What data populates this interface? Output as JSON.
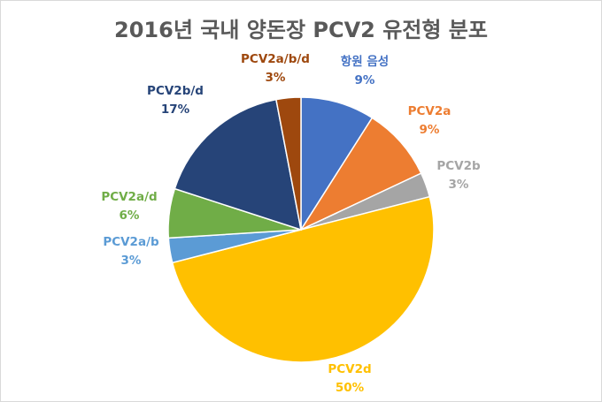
{
  "chart_data": {
    "type": "pie",
    "title": "2016년 국내 양돈장 PCV2 유전형 분포",
    "categories": [
      "항원 음성",
      "PCV2a",
      "PCV2b",
      "PCV2d",
      "PCV2a/b",
      "PCV2a/d",
      "PCV2b/d",
      "PCV2a/b/d"
    ],
    "values": [
      9,
      9,
      3,
      50,
      3,
      6,
      17,
      3
    ],
    "value_labels": [
      "9%",
      "9%",
      "3%",
      "50%",
      "3%",
      "6%",
      "17%",
      "3%"
    ],
    "colors": [
      "#4472C4",
      "#ED7D31",
      "#A5A5A5",
      "#FFC000",
      "#5B9BD5",
      "#70AD47",
      "#264478",
      "#9E480E"
    ],
    "start_angle_deg": 0,
    "direction": "clockwise",
    "labels_outside": true,
    "legend": "none"
  }
}
